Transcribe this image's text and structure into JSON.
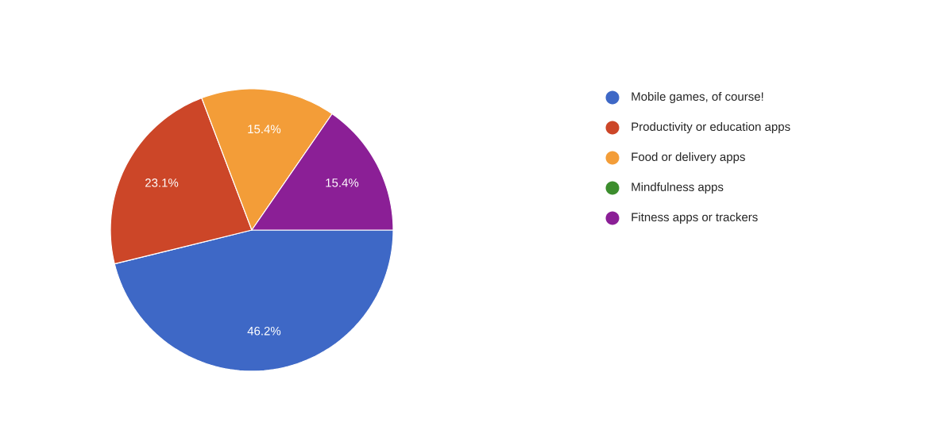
{
  "chart_data": {
    "type": "pie",
    "categories": [
      "Mobile games, of course!",
      "Productivity or education apps",
      "Food or delivery apps",
      "Mindfulness apps",
      "Fitness apps or trackers"
    ],
    "values": [
      46.2,
      23.1,
      15.4,
      0,
      15.4
    ],
    "colors": [
      "#3e68c6",
      "#cc4628",
      "#f39d38",
      "#3c8d2d",
      "#8b1f96"
    ],
    "value_labels": [
      "46.2%",
      "23.1%",
      "15.4%",
      null,
      "15.4%"
    ],
    "legend": "right"
  }
}
